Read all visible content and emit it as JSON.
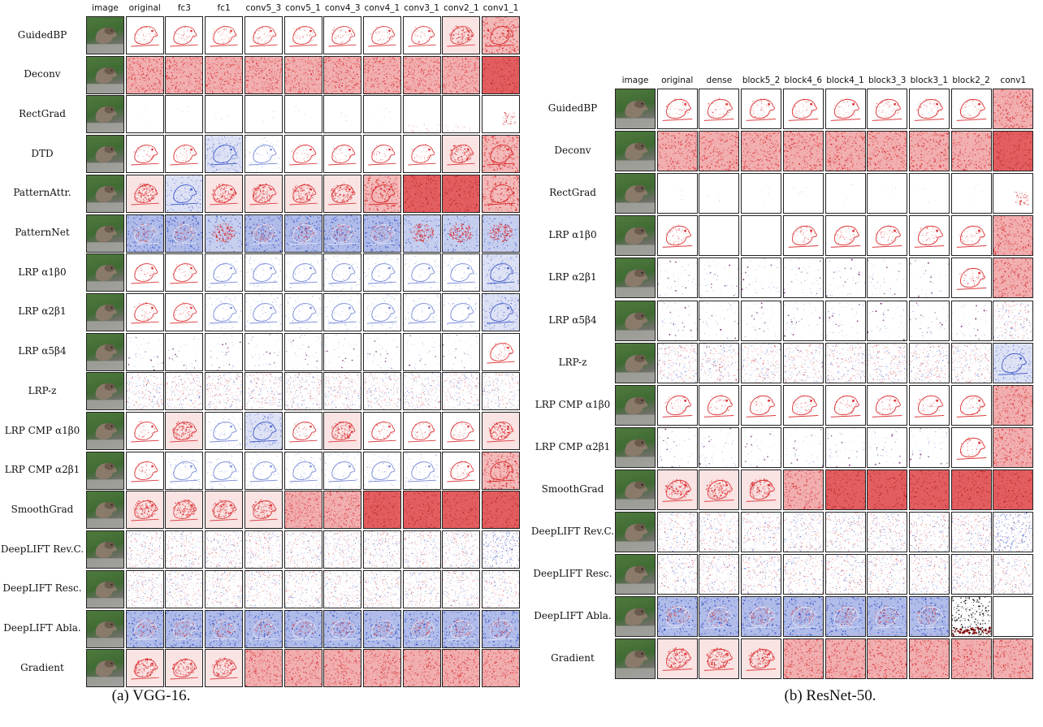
{
  "panels": [
    {
      "id": "vgg",
      "caption": "(a) VGG-16.",
      "columns": [
        "image",
        "original",
        "fc3",
        "fc1",
        "conv5_3",
        "conv5_1",
        "conv4_3",
        "conv4_1",
        "conv3_1",
        "conv2_1",
        "conv1_1"
      ],
      "rows": [
        {
          "label": "GuidedBP",
          "maps": [
            "red-sparse",
            "red-sparse",
            "red-sparse",
            "red-sparse",
            "red-sparse",
            "red-sparse",
            "red-sparse",
            "red-sparse",
            "red-medium",
            "red-heavy"
          ]
        },
        {
          "label": "Deconv",
          "maps": [
            "red-dense",
            "red-dense",
            "red-dense",
            "red-dense",
            "red-dense",
            "red-dense",
            "red-dense",
            "red-dense",
            "red-dense",
            "red-full"
          ]
        },
        {
          "label": "RectGrad",
          "maps": [
            "faint",
            "faint",
            "faint",
            "faint",
            "faint",
            "faint",
            "faint",
            "faint-bottom",
            "faint-bottom",
            "red-corner"
          ]
        },
        {
          "label": "DTD",
          "maps": [
            "red-sparse",
            "red-sparse",
            "blue-medium",
            "blue-sparse",
            "red-sparse",
            "red-sparse",
            "red-sparse",
            "red-sparse",
            "red-medium",
            "red-heavy"
          ]
        },
        {
          "label": "PatternAttr.",
          "maps": [
            "red-medium",
            "blue-medium",
            "red-medium",
            "red-medium",
            "red-medium",
            "red-medium",
            "red-heavy",
            "red-full",
            "red-full",
            "red-heavy"
          ]
        },
        {
          "label": "PatternNet",
          "maps": [
            "mixed-blue",
            "mixed-blue",
            "mixed-red",
            "mixed-blue",
            "mixed-blue",
            "mixed-blue",
            "mixed-blue",
            "mixed-red",
            "mixed-red",
            "mixed-red"
          ]
        },
        {
          "label": "LRP α1β0",
          "maps": [
            "red-sparse",
            "red-sparse",
            "blue-sparse",
            "blue-sparse",
            "blue-sparse",
            "blue-sparse",
            "blue-sparse",
            "blue-sparse",
            "blue-sparse",
            "blue-medium"
          ]
        },
        {
          "label": "LRP α2β1",
          "maps": [
            "red-sparse",
            "red-sparse",
            "blue-sparse",
            "blue-sparse",
            "blue-sparse",
            "blue-sparse",
            "blue-sparse",
            "blue-sparse",
            "blue-sparse",
            "blue-medium"
          ]
        },
        {
          "label": "LRP α5β4",
          "maps": [
            "purple-sparse",
            "purple-sparse",
            "purple-sparse",
            "purple-sparse",
            "purple-sparse",
            "purple-sparse",
            "purple-sparse",
            "purple-sparse",
            "purple-sparse",
            "red-sparse"
          ]
        },
        {
          "label": "LRP-z",
          "maps": [
            "noise",
            "noise",
            "noise",
            "noise",
            "noise",
            "noise",
            "noise",
            "noise",
            "noise",
            "noise"
          ]
        },
        {
          "label": "LRP CMP α1β0",
          "maps": [
            "red-sparse",
            "red-medium",
            "blue-sparse",
            "blue-medium",
            "red-sparse",
            "red-medium",
            "red-sparse",
            "red-sparse",
            "red-sparse",
            "red-medium"
          ]
        },
        {
          "label": "LRP CMP α2β1",
          "maps": [
            "red-sparse",
            "blue-sparse",
            "blue-sparse",
            "blue-sparse",
            "blue-sparse",
            "blue-sparse",
            "blue-sparse",
            "blue-sparse",
            "red-sparse",
            "red-heavy"
          ]
        },
        {
          "label": "SmoothGrad",
          "maps": [
            "red-medium",
            "red-medium",
            "red-medium",
            "red-medium",
            "red-dense",
            "red-dense",
            "red-full",
            "red-full",
            "red-full",
            "red-full"
          ]
        },
        {
          "label": "DeepLIFT Rev.C.",
          "maps": [
            "noise",
            "noise",
            "noise",
            "noise",
            "noise",
            "noise",
            "noise",
            "noise",
            "noise",
            "noise-blue"
          ]
        },
        {
          "label": "DeepLIFT Resc.",
          "maps": [
            "noise",
            "noise",
            "noise",
            "noise",
            "noise",
            "noise",
            "noise",
            "noise",
            "noise",
            "noise"
          ]
        },
        {
          "label": "DeepLIFT Abla.",
          "maps": [
            "mixed-blue",
            "mixed-blue",
            "mixed-blue",
            "mixed-blue",
            "mixed-blue",
            "mixed-blue",
            "mixed-blue",
            "mixed-blue",
            "mixed-blue",
            "mixed-blue"
          ]
        },
        {
          "label": "Gradient",
          "maps": [
            "red-medium",
            "red-medium",
            "red-medium",
            "red-dense",
            "red-dense",
            "red-dense",
            "red-dense",
            "red-dense",
            "red-dense",
            "red-dense"
          ]
        }
      ]
    },
    {
      "id": "resnet",
      "caption": "(b) ResNet-50.",
      "columns": [
        "image",
        "original",
        "dense",
        "block5_2",
        "block4_6",
        "block4_1",
        "block3_3",
        "block3_1",
        "block2_2",
        "conv1"
      ],
      "rows": [
        {
          "label": "GuidedBP",
          "maps": [
            "red-sparse",
            "red-sparse",
            "red-sparse",
            "red-sparse",
            "red-sparse",
            "red-sparse",
            "red-sparse",
            "red-sparse",
            "red-dense"
          ]
        },
        {
          "label": "Deconv",
          "maps": [
            "red-dense",
            "red-dense",
            "red-dense",
            "red-dense",
            "red-dense",
            "red-dense",
            "red-dense",
            "red-dense",
            "red-full"
          ]
        },
        {
          "label": "RectGrad",
          "maps": [
            "faint",
            "faint",
            "faint",
            "faint",
            "faint",
            "faint",
            "faint",
            "faint",
            "red-corner"
          ]
        },
        {
          "label": "LRP α1β0",
          "maps": [
            "red-sparse",
            "blank",
            "blank",
            "red-sparse",
            "red-sparse",
            "red-sparse",
            "red-sparse",
            "red-sparse",
            "red-dense"
          ]
        },
        {
          "label": "LRP α2β1",
          "maps": [
            "purple-sparse",
            "purple-sparse",
            "purple-sparse",
            "purple-sparse",
            "purple-sparse",
            "purple-sparse",
            "purple-sparse",
            "red-sparse",
            "red-dense"
          ]
        },
        {
          "label": "LRP α5β4",
          "maps": [
            "purple-sparse",
            "purple-sparse",
            "purple-sparse",
            "purple-sparse",
            "purple-sparse",
            "purple-sparse",
            "purple-sparse",
            "purple-sparse",
            "noise"
          ]
        },
        {
          "label": "LRP-z",
          "maps": [
            "noise",
            "noise",
            "noise",
            "noise",
            "noise",
            "noise",
            "noise",
            "noise",
            "blue-medium"
          ]
        },
        {
          "label": "LRP CMP α1β0",
          "maps": [
            "red-sparse",
            "red-sparse",
            "red-sparse",
            "red-sparse",
            "red-sparse",
            "red-sparse",
            "red-sparse",
            "red-sparse",
            "red-dense"
          ]
        },
        {
          "label": "LRP CMP α2β1",
          "maps": [
            "purple-sparse",
            "purple-sparse",
            "purple-sparse",
            "purple-sparse",
            "purple-sparse",
            "purple-sparse",
            "purple-sparse",
            "red-sparse",
            "red-dense"
          ]
        },
        {
          "label": "SmoothGrad",
          "maps": [
            "red-medium",
            "red-medium",
            "red-medium",
            "red-dense",
            "red-full",
            "red-full",
            "red-full",
            "red-full",
            "red-full"
          ]
        },
        {
          "label": "DeepLIFT Rev.C.",
          "maps": [
            "noise",
            "noise",
            "noise",
            "noise",
            "noise",
            "noise",
            "noise",
            "noise",
            "noise-blue"
          ]
        },
        {
          "label": "DeepLIFT Resc.",
          "maps": [
            "noise",
            "noise",
            "noise",
            "noise",
            "noise",
            "noise",
            "noise",
            "noise",
            "noise"
          ]
        },
        {
          "label": "DeepLIFT Abla.",
          "maps": [
            "mixed-blue",
            "mixed-blue",
            "mixed-blue",
            "mixed-blue",
            "mixed-blue",
            "mixed-blue",
            "mixed-blue",
            "dark-blob",
            "blank"
          ]
        },
        {
          "label": "Gradient",
          "maps": [
            "red-medium",
            "red-medium",
            "red-medium",
            "red-dense",
            "red-dense",
            "red-dense",
            "red-dense",
            "red-dense",
            "red-dense"
          ]
        }
      ]
    }
  ],
  "colors": {
    "red": "#d7191c",
    "blue": "#1f3fbf",
    "purple": "#6a1b6a",
    "frame": "#222222"
  }
}
